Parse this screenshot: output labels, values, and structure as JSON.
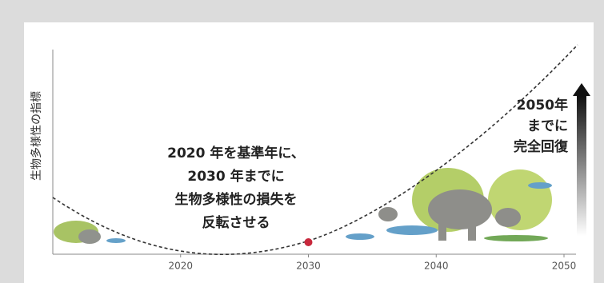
{
  "chart_data": {
    "type": "line",
    "y_label": "生物多様性の指標",
    "annotation": [
      "2020 年を基準年に、",
      "2030 年までに",
      "生物多様性の損失を",
      "反転させる"
    ],
    "goal": [
      "2050年",
      "までに",
      "完全回復"
    ],
    "xlim": [
      2010,
      2050
    ],
    "xticks": [
      2020,
      2030,
      2040,
      2050
    ],
    "highlight_x": 2030,
    "highlight_color": "#c8283c",
    "line_color": "#333333"
  }
}
